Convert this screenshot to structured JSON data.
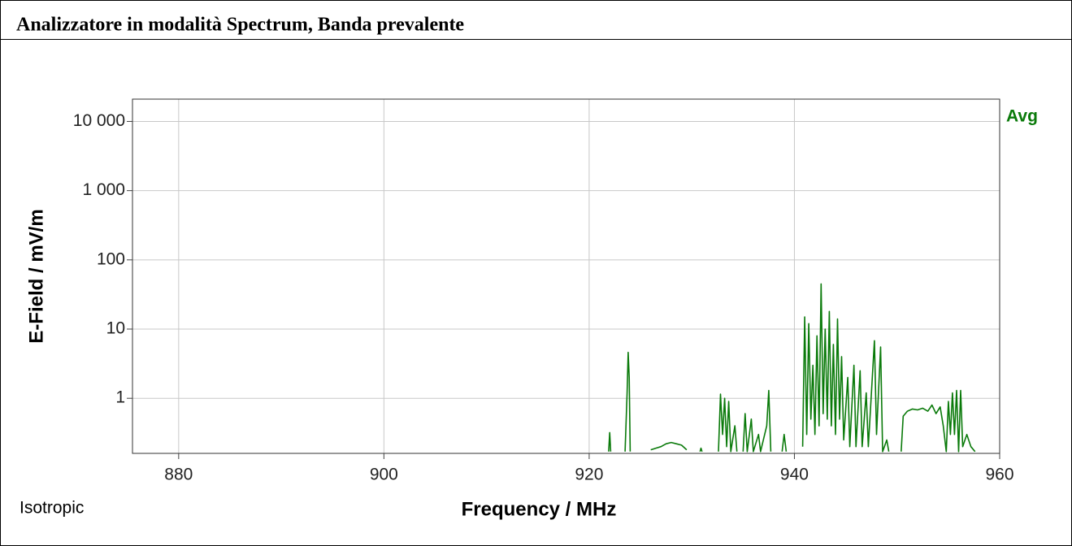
{
  "header": {
    "title": "Analizzatore in modalità Spectrum, Banda prevalente"
  },
  "chart_data": {
    "type": "line",
    "xlabel": "Frequency / MHz",
    "ylabel": "E-Field / mV/m",
    "annotation": "Isotropic",
    "yscale": "log",
    "grid": true,
    "legend": "top-right",
    "xlim": [
      875.5,
      960
    ],
    "xticks": [
      880,
      900,
      920,
      940,
      960
    ],
    "ylim": [
      0.16,
      21000
    ],
    "yticks": [
      1,
      10,
      100,
      {
        "value": 1000,
        "label": "1 000"
      },
      {
        "value": 10000,
        "label": "10 000"
      }
    ],
    "x": [
      921.9,
      922.0,
      922.1,
      922.2,
      923.5,
      923.7,
      923.8,
      923.9,
      924.0,
      924.1,
      926.0,
      926.5,
      927.0,
      927.5,
      928.0,
      928.5,
      929.0,
      929.5,
      929.6,
      930.8,
      930.9,
      931.0,
      931.1,
      932.6,
      932.8,
      933.0,
      933.2,
      933.4,
      933.6,
      933.8,
      934.2,
      934.4,
      934.5,
      935.0,
      935.2,
      935.4,
      935.8,
      936.0,
      936.5,
      936.7,
      937.3,
      937.5,
      937.7,
      937.8,
      938.8,
      939.0,
      939.2,
      939.3,
      940.8,
      941.0,
      941.2,
      941.4,
      941.6,
      941.8,
      942.0,
      942.2,
      942.4,
      942.6,
      942.8,
      943.0,
      943.2,
      943.4,
      943.6,
      943.8,
      944.0,
      944.2,
      944.4,
      944.6,
      944.8,
      945.2,
      945.4,
      945.8,
      946.0,
      946.4,
      946.6,
      947.0,
      947.2,
      947.8,
      948.0,
      948.4,
      948.6,
      949.0,
      949.2,
      949.3,
      950.4,
      950.6,
      951.0,
      951.5,
      952.0,
      952.5,
      953.0,
      953.4,
      953.8,
      954.2,
      954.5,
      954.8,
      955.0,
      955.2,
      955.4,
      955.6,
      955.8,
      956.0,
      956.2,
      956.4,
      956.8,
      957.2,
      957.6
    ],
    "series": [
      {
        "name": "Avg",
        "color": "#0a7a0a",
        "values": [
          0.17,
          0.32,
          0.17,
          null,
          0.17,
          1.2,
          4.6,
          2.0,
          0.17,
          null,
          0.18,
          0.19,
          0.2,
          0.22,
          0.23,
          0.22,
          0.21,
          0.18,
          null,
          0.17,
          0.19,
          0.17,
          null,
          0.17,
          1.15,
          0.3,
          1.0,
          0.2,
          0.9,
          0.17,
          0.4,
          0.17,
          null,
          0.17,
          0.6,
          0.17,
          0.5,
          0.17,
          0.3,
          0.17,
          0.4,
          1.3,
          0.17,
          null,
          0.17,
          0.3,
          0.17,
          null,
          0.2,
          15,
          0.3,
          12,
          0.5,
          3,
          0.3,
          8,
          0.4,
          45,
          0.6,
          10,
          0.5,
          18,
          0.4,
          6,
          0.3,
          14,
          0.5,
          4,
          0.25,
          2,
          0.2,
          3,
          0.2,
          2.5,
          0.2,
          1.2,
          0.2,
          6.8,
          0.3,
          5.5,
          0.17,
          0.25,
          0.17,
          null,
          0.17,
          0.55,
          0.65,
          0.7,
          0.68,
          0.72,
          0.65,
          0.8,
          0.6,
          0.75,
          0.4,
          0.17,
          0.9,
          0.3,
          1.2,
          0.3,
          1.3,
          0.17,
          1.3,
          0.2,
          0.3,
          0.2,
          0.17
        ]
      }
    ]
  }
}
